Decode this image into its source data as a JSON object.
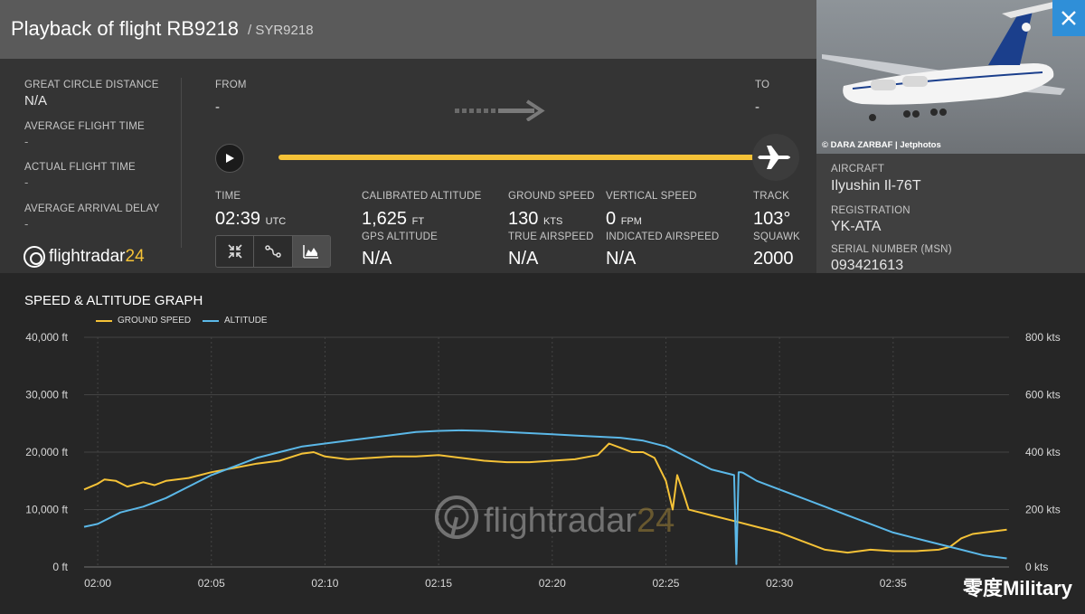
{
  "header": {
    "title": "Playback of flight RB9218",
    "subtitle": "/ SYR9218"
  },
  "stats": {
    "great_circle_label": "GREAT CIRCLE DISTANCE",
    "great_circle_value": "N/A",
    "avg_flight_label": "AVERAGE FLIGHT TIME",
    "avg_flight_value": "-",
    "actual_flight_label": "ACTUAL FLIGHT TIME",
    "actual_flight_value": "-",
    "avg_arrival_label": "AVERAGE ARRIVAL DELAY",
    "avg_arrival_value": "-"
  },
  "logo": {
    "word": "flightradar",
    "num": "24"
  },
  "route": {
    "from_label": "FROM",
    "from_value": "-",
    "to_label": "TO",
    "to_value": "-",
    "progress": 1.0
  },
  "telemetry": {
    "time_label": "TIME",
    "time_value": "02:39",
    "time_unit": "UTC",
    "cal_alt_label": "CALIBRATED ALTITUDE",
    "cal_alt_value": "1,625",
    "cal_alt_unit": "FT",
    "gps_alt_label": "GPS ALTITUDE",
    "gps_alt_value": "N/A",
    "gs_label": "GROUND SPEED",
    "gs_value": "130",
    "gs_unit": "KTS",
    "tas_label": "TRUE AIRSPEED",
    "tas_value": "N/A",
    "vs_label": "VERTICAL SPEED",
    "vs_value": "0",
    "vs_unit": "FPM",
    "ias_label": "INDICATED AIRSPEED",
    "ias_value": "N/A",
    "track_label": "TRACK",
    "track_value": "103°",
    "squawk_label": "SQUAWK",
    "squawk_value": "2000"
  },
  "photo": {
    "credit": "© DARA ZARBAF | Jetphotos"
  },
  "aircraft": {
    "aircraft_label": "AIRCRAFT",
    "aircraft_value": "Ilyushin Il-76T",
    "reg_label": "REGISTRATION",
    "reg_value": "YK-ATA",
    "msn_label": "SERIAL NUMBER (MSN)",
    "msn_value": "093421613"
  },
  "graph": {
    "title": "SPEED & ALTITUDE GRAPH",
    "legend_speed": "GROUND SPEED",
    "legend_alt": "ALTITUDE",
    "speed_color": "#f5c237",
    "alt_color": "#5bb8e8",
    "watermark_word": "flightradar",
    "watermark_num": "24"
  },
  "overlay": {
    "watermark": "零度Military"
  },
  "chart_data": {
    "type": "line",
    "title": "SPEED & ALTITUDE GRAPH",
    "x_ticks": [
      "02:00",
      "02:05",
      "02:10",
      "02:15",
      "02:20",
      "02:25",
      "02:30",
      "02:35"
    ],
    "y_left_ticks": [
      "40,000 ft",
      "30,000 ft",
      "20,000 ft",
      "10,000 ft",
      "0 ft"
    ],
    "y_right_ticks": [
      "800 kts",
      "600 kts",
      "400 kts",
      "200 kts",
      "0 kts"
    ],
    "ylim_left": [
      0,
      40000
    ],
    "ylim_right": [
      0,
      800
    ],
    "xlim_minutes": [
      -0.6,
      40.1
    ],
    "x_start_time": "01:59",
    "series": [
      {
        "name": "GROUND SPEED",
        "axis": "right",
        "unit": "kts",
        "x": [
          -0.6,
          0,
          0.3,
          0.8,
          1.3,
          2,
          2.5,
          3,
          4,
          5,
          6,
          7,
          8,
          9,
          9.5,
          10,
          11,
          12,
          13,
          14,
          15,
          16,
          17,
          18,
          19,
          20,
          21,
          22,
          22.5,
          23,
          23.5,
          24,
          24.5,
          25,
          25.3,
          25.5,
          25.8,
          26,
          26.5,
          27,
          28,
          29,
          30,
          31,
          32,
          33,
          34,
          35,
          36,
          37,
          37.5,
          38,
          38.5,
          39,
          40
        ],
        "values": [
          270,
          290,
          305,
          300,
          280,
          295,
          285,
          300,
          310,
          330,
          345,
          360,
          370,
          395,
          400,
          385,
          375,
          380,
          385,
          385,
          390,
          380,
          370,
          365,
          365,
          370,
          375,
          390,
          430,
          415,
          400,
          400,
          380,
          300,
          200,
          320,
          250,
          200,
          190,
          180,
          160,
          140,
          120,
          90,
          60,
          50,
          60,
          55,
          55,
          60,
          70,
          100,
          115,
          120,
          130
        ]
      },
      {
        "name": "ALTITUDE",
        "axis": "left",
        "unit": "ft",
        "x": [
          -0.6,
          0,
          1,
          2,
          3,
          4,
          5,
          6,
          7,
          8,
          9,
          10,
          11,
          12,
          13,
          14,
          15,
          16,
          17,
          18,
          19,
          20,
          21,
          22,
          23,
          24,
          25,
          26,
          27,
          28,
          28.1,
          28.2,
          28.3,
          28.4,
          29,
          30,
          31,
          32,
          33,
          34,
          35,
          36,
          37,
          38,
          39,
          40
        ],
        "values": [
          7000,
          7500,
          9500,
          10500,
          12000,
          14000,
          16000,
          17500,
          19000,
          20000,
          21000,
          21500,
          22000,
          22500,
          23000,
          23500,
          23700,
          23800,
          23700,
          23500,
          23300,
          23100,
          22900,
          22700,
          22500,
          22000,
          21000,
          19000,
          17000,
          16000,
          500,
          16500,
          16500,
          16400,
          15000,
          13500,
          12000,
          10500,
          9000,
          7500,
          6000,
          5000,
          4000,
          3000,
          2000,
          1500
        ]
      }
    ],
    "grid": true
  }
}
